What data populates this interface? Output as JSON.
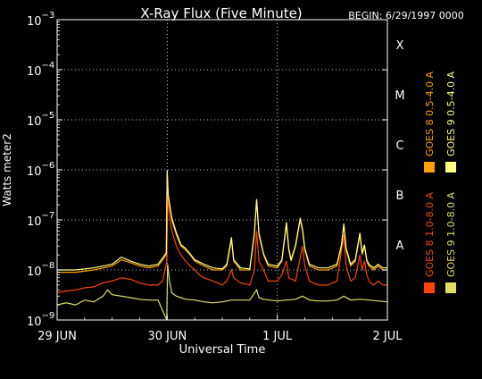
{
  "chart_data": {
    "type": "line",
    "title": "X-Ray Flux (Five Minute)",
    "begin_label": "BEGIN: 6/29/1997 0000",
    "xlabel": "Universal Time",
    "ylabel": "Watts meter2",
    "y_scale": "log",
    "ylim": [
      1e-09,
      0.001
    ],
    "y_ticks": [
      {
        "base": "10",
        "exp": "−3",
        "value": 0.001
      },
      {
        "base": "10",
        "exp": "−4",
        "value": 0.0001
      },
      {
        "base": "10",
        "exp": "−5",
        "value": 1e-05
      },
      {
        "base": "10",
        "exp": "−6",
        "value": 1e-06
      },
      {
        "base": "10",
        "exp": "−7",
        "value": 1e-07
      },
      {
        "base": "10",
        "exp": "−8",
        "value": 1e-08
      },
      {
        "base": "10",
        "exp": "−9",
        "value": 1e-09
      }
    ],
    "xlim": [
      0,
      72
    ],
    "x_ticks": [
      {
        "label": "29 JUN",
        "hour": 0
      },
      {
        "label": "30 JUN",
        "hour": 24
      },
      {
        "label": "1 JUL",
        "hour": 48
      },
      {
        "label": "2 JUL",
        "hour": 72
      }
    ],
    "flare_classes": [
      {
        "label": "X",
        "value": 0.0001
      },
      {
        "label": "M",
        "value": 1e-05
      },
      {
        "label": "C",
        "value": 1e-06
      },
      {
        "label": "B",
        "value": 1e-07
      },
      {
        "label": "A",
        "value": 1e-08
      }
    ],
    "grid": true,
    "legend_position": "right, vertical",
    "series": [
      {
        "name": "GOES 8 1.0-8.0 A",
        "color": "#ff4400",
        "points": [
          [
            0,
            3.5e-09
          ],
          [
            2,
            3.8e-09
          ],
          [
            4,
            4e-09
          ],
          [
            6,
            4.4e-09
          ],
          [
            8,
            4.6e-09
          ],
          [
            10,
            5.5e-09
          ],
          [
            12,
            6e-09
          ],
          [
            14,
            7e-09
          ],
          [
            16,
            6.5e-09
          ],
          [
            18,
            5.5e-09
          ],
          [
            20,
            5e-09
          ],
          [
            22,
            5e-09
          ],
          [
            23,
            6e-09
          ],
          [
            23.9,
            1.5e-08
          ],
          [
            24.1,
            3e-07
          ],
          [
            24.5,
            1.2e-07
          ],
          [
            25,
            6e-08
          ],
          [
            26,
            3e-08
          ],
          [
            27,
            2e-08
          ],
          [
            28,
            1.5e-08
          ],
          [
            29,
            1.2e-08
          ],
          [
            30,
            1e-08
          ],
          [
            31,
            8e-09
          ],
          [
            32,
            7e-09
          ],
          [
            34,
            6e-09
          ],
          [
            36,
            5e-09
          ],
          [
            37,
            6e-09
          ],
          [
            38,
            1e-08
          ],
          [
            38.5,
            7e-09
          ],
          [
            40,
            5.5e-09
          ],
          [
            42,
            5e-09
          ],
          [
            43,
            1e-08
          ],
          [
            43.5,
            6e-08
          ],
          [
            44,
            1.5e-08
          ],
          [
            45,
            1e-08
          ],
          [
            46,
            6e-09
          ],
          [
            47,
            6e-09
          ],
          [
            48,
            6e-09
          ],
          [
            49,
            8e-09
          ],
          [
            50,
            1.5e-08
          ],
          [
            50.5,
            7e-09
          ],
          [
            52,
            6e-09
          ],
          [
            53.5,
            3e-08
          ],
          [
            54,
            1.2e-08
          ],
          [
            55,
            6e-09
          ],
          [
            57,
            5e-09
          ],
          [
            59,
            5e-09
          ],
          [
            61,
            6e-09
          ],
          [
            62.5,
            5e-08
          ],
          [
            63,
            1.2e-08
          ],
          [
            64,
            6e-09
          ],
          [
            65,
            7e-09
          ],
          [
            66,
            2e-08
          ],
          [
            66.5,
            1e-08
          ],
          [
            67,
            1.5e-08
          ],
          [
            67.5,
            8e-09
          ],
          [
            68,
            6e-09
          ],
          [
            69,
            5e-09
          ],
          [
            70,
            6e-09
          ],
          [
            71,
            5e-09
          ],
          [
            72,
            5e-09
          ]
        ]
      },
      {
        "name": "GOES 8 0.5-4.0 A",
        "color": "#ffa000",
        "points": [
          [
            0,
            9e-09
          ],
          [
            4,
            9e-09
          ],
          [
            8,
            1e-08
          ],
          [
            12,
            1.2e-08
          ],
          [
            14,
            1.6e-08
          ],
          [
            16,
            1.4e-08
          ],
          [
            18,
            1.2e-08
          ],
          [
            20,
            1.1e-08
          ],
          [
            22,
            1.2e-08
          ],
          [
            23.8,
            2e-08
          ],
          [
            24,
            9e-07
          ],
          [
            24.2,
            3e-07
          ],
          [
            25,
            1e-07
          ],
          [
            26,
            5e-08
          ],
          [
            27,
            3e-08
          ],
          [
            28,
            2.5e-08
          ],
          [
            29,
            2e-08
          ],
          [
            30,
            1.5e-08
          ],
          [
            32,
            1.2e-08
          ],
          [
            34,
            1e-08
          ],
          [
            36,
            1e-08
          ],
          [
            37,
            1.2e-08
          ],
          [
            38,
            4e-08
          ],
          [
            38.5,
            1.5e-08
          ],
          [
            40,
            1e-08
          ],
          [
            42,
            1e-08
          ],
          [
            43,
            5e-08
          ],
          [
            43.5,
            2.5e-07
          ],
          [
            44,
            5e-08
          ],
          [
            45,
            2e-08
          ],
          [
            46,
            1.2e-08
          ],
          [
            48,
            1.1e-08
          ],
          [
            49,
            1.5e-08
          ],
          [
            50,
            8e-08
          ],
          [
            50.5,
            2.5e-08
          ],
          [
            51,
            1.5e-08
          ],
          [
            52,
            3e-08
          ],
          [
            53,
            1e-07
          ],
          [
            53.5,
            6e-08
          ],
          [
            54,
            2.5e-08
          ],
          [
            55,
            1.2e-08
          ],
          [
            57,
            1e-08
          ],
          [
            59,
            1e-08
          ],
          [
            61,
            1.2e-08
          ],
          [
            62,
            3e-08
          ],
          [
            62.5,
            8e-08
          ],
          [
            63,
            2.5e-08
          ],
          [
            64,
            1.2e-08
          ],
          [
            65,
            1.5e-08
          ],
          [
            66,
            5e-08
          ],
          [
            66.5,
            2e-08
          ],
          [
            67,
            3e-08
          ],
          [
            67.5,
            1.5e-08
          ],
          [
            68,
            1.2e-08
          ],
          [
            69,
            1e-08
          ],
          [
            70,
            1.2e-08
          ],
          [
            71,
            1e-08
          ],
          [
            72,
            1e-08
          ]
        ]
      },
      {
        "name": "GOES 9 0.5-4.0 A",
        "color": "#ffff80",
        "points": [
          [
            0,
            1e-08
          ],
          [
            4,
            1e-08
          ],
          [
            8,
            1.1e-08
          ],
          [
            12,
            1.3e-08
          ],
          [
            14,
            1.8e-08
          ],
          [
            16,
            1.5e-08
          ],
          [
            18,
            1.3e-08
          ],
          [
            20,
            1.2e-08
          ],
          [
            22,
            1.3e-08
          ],
          [
            23.8,
            2.2e-08
          ],
          [
            24,
            1e-06
          ],
          [
            24.2,
            3.2e-07
          ],
          [
            25,
            1.1e-07
          ],
          [
            26,
            5.5e-08
          ],
          [
            27,
            3.2e-08
          ],
          [
            28,
            2.7e-08
          ],
          [
            29,
            2.1e-08
          ],
          [
            30,
            1.6e-08
          ],
          [
            32,
            1.3e-08
          ],
          [
            34,
            1.1e-08
          ],
          [
            36,
            1.05e-08
          ],
          [
            37,
            1.3e-08
          ],
          [
            38,
            4.5e-08
          ],
          [
            38.5,
            1.6e-08
          ],
          [
            40,
            1.1e-08
          ],
          [
            42,
            1.05e-08
          ],
          [
            43,
            5.5e-08
          ],
          [
            43.5,
            2.6e-07
          ],
          [
            44,
            5.5e-08
          ],
          [
            45,
            2.1e-08
          ],
          [
            46,
            1.3e-08
          ],
          [
            48,
            1.2e-08
          ],
          [
            49,
            1.6e-08
          ],
          [
            50,
            9e-08
          ],
          [
            50.5,
            2.7e-08
          ],
          [
            51,
            1.6e-08
          ],
          [
            52,
            3.2e-08
          ],
          [
            53,
            1.1e-07
          ],
          [
            53.5,
            6.5e-08
          ],
          [
            54,
            2.7e-08
          ],
          [
            55,
            1.3e-08
          ],
          [
            57,
            1.1e-08
          ],
          [
            59,
            1.1e-08
          ],
          [
            61,
            1.3e-08
          ],
          [
            62,
            3.2e-08
          ],
          [
            62.5,
            8.5e-08
          ],
          [
            63,
            2.7e-08
          ],
          [
            64,
            1.3e-08
          ],
          [
            65,
            1.6e-08
          ],
          [
            66,
            5.5e-08
          ],
          [
            66.5,
            2.2e-08
          ],
          [
            67,
            3.2e-08
          ],
          [
            67.5,
            1.6e-08
          ],
          [
            68,
            1.3e-08
          ],
          [
            69,
            1.1e-08
          ],
          [
            70,
            1.3e-08
          ],
          [
            71,
            1.1e-08
          ],
          [
            72,
            1.1e-08
          ]
        ]
      },
      {
        "name": "GOES 9 1.0-8.0 A",
        "color": "#e0e060",
        "points": [
          [
            0,
            2e-09
          ],
          [
            2,
            2.2e-09
          ],
          [
            4,
            2e-09
          ],
          [
            6,
            2.5e-09
          ],
          [
            8,
            2.3e-09
          ],
          [
            10,
            3e-09
          ],
          [
            11,
            4e-09
          ],
          [
            12,
            3.2e-09
          ],
          [
            14,
            3e-09
          ],
          [
            16,
            2.8e-09
          ],
          [
            18,
            2.6e-09
          ],
          [
            20,
            2.5e-09
          ],
          [
            22,
            2.5e-09
          ],
          [
            23.9,
            1e-09
          ],
          [
            24.1,
            1.3e-08
          ],
          [
            24.5,
            6e-09
          ],
          [
            25,
            3.5e-09
          ],
          [
            26,
            3e-09
          ],
          [
            27,
            2.8e-09
          ],
          [
            28,
            2.6e-09
          ],
          [
            30,
            2.5e-09
          ],
          [
            32,
            2.3e-09
          ],
          [
            34,
            2.2e-09
          ],
          [
            36,
            2.3e-09
          ],
          [
            38,
            2.5e-09
          ],
          [
            40,
            2.5e-09
          ],
          [
            42,
            2.5e-09
          ],
          [
            43.5,
            4e-09
          ],
          [
            44,
            2.8e-09
          ],
          [
            45,
            2.6e-09
          ],
          [
            48,
            2.4e-09
          ],
          [
            50,
            2.5e-09
          ],
          [
            52,
            2.6e-09
          ],
          [
            53.5,
            3e-09
          ],
          [
            55,
            2.5e-09
          ],
          [
            57,
            2.4e-09
          ],
          [
            59,
            2.4e-09
          ],
          [
            61,
            2.5e-09
          ],
          [
            62.5,
            3e-09
          ],
          [
            64,
            2.5e-09
          ],
          [
            66,
            2.6e-09
          ],
          [
            68,
            2.5e-09
          ],
          [
            70,
            2.4e-09
          ],
          [
            72,
            2.3e-09
          ]
        ]
      }
    ]
  }
}
